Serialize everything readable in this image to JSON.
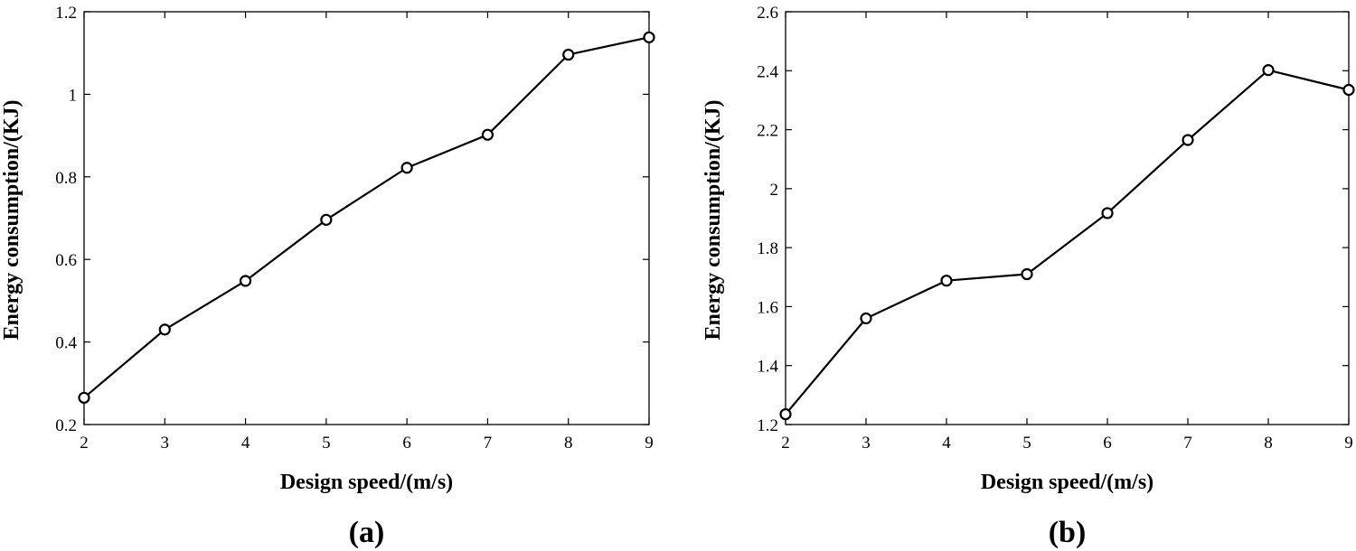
{
  "chart_data": [
    {
      "type": "line",
      "panel_label": "(a)",
      "title": "",
      "xlabel": "Design speed/(m/s)",
      "ylabel": "Energy consumption/(KJ)",
      "x": [
        2,
        3,
        4,
        5,
        6,
        7,
        8,
        9
      ],
      "xlim": [
        2,
        9
      ],
      "xticks": [
        "2",
        "3",
        "4",
        "5",
        "6",
        "7",
        "8",
        "9"
      ],
      "ylim": [
        0.2,
        1.2
      ],
      "yticks": [
        "0.2",
        "0.4",
        "0.6",
        "0.8",
        "1",
        "1.2"
      ],
      "series": [
        {
          "values": [
            0.265,
            0.43,
            0.548,
            0.696,
            0.822,
            0.902,
            1.096,
            1.138
          ]
        }
      ],
      "marker": "circle",
      "grid": false,
      "legend": "none"
    },
    {
      "type": "line",
      "panel_label": "(b)",
      "title": "",
      "xlabel": "Design speed/(m/s)",
      "ylabel": "Energy consumption/(KJ)",
      "x": [
        2,
        3,
        4,
        5,
        6,
        7,
        8,
        9
      ],
      "xlim": [
        2,
        9
      ],
      "xticks": [
        "2",
        "3",
        "4",
        "5",
        "6",
        "7",
        "8",
        "9"
      ],
      "ylim": [
        1.2,
        2.6
      ],
      "yticks": [
        "1.2",
        "1.4",
        "1.6",
        "1.8",
        "2",
        "2.2",
        "2.4",
        "2.6"
      ],
      "series": [
        {
          "values": [
            1.235,
            1.56,
            1.688,
            1.71,
            1.917,
            2.165,
            2.402,
            2.335
          ]
        }
      ],
      "marker": "circle",
      "grid": false,
      "legend": "none"
    }
  ],
  "colors": {
    "line": "#000000",
    "axis": "#000000",
    "marker_fill": "#ffffff"
  }
}
